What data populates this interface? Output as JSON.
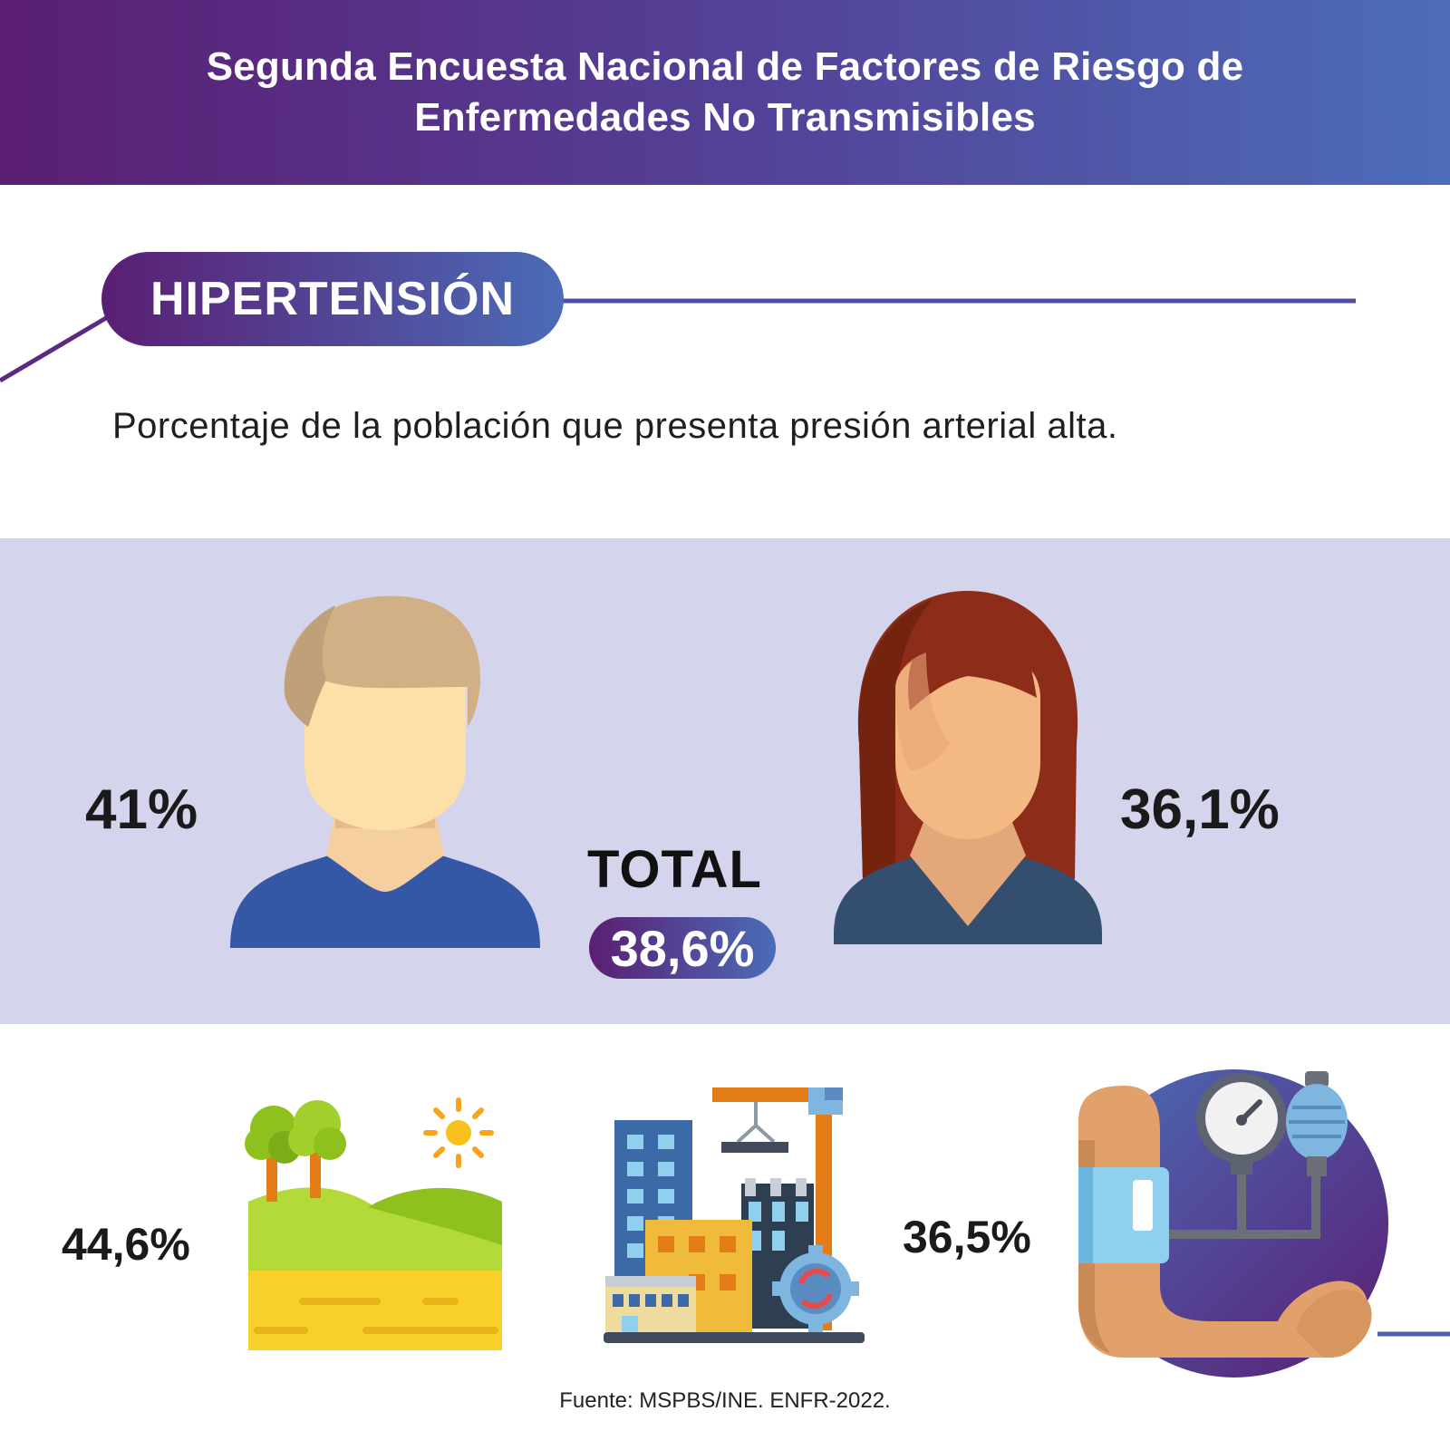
{
  "header": {
    "title": "Segunda Encuesta Nacional de Factores de Riesgo de Enfermedades No Transmisibles"
  },
  "section": {
    "label": "HIPERTENSIÓN",
    "subtitle": "Porcentaje de la población que presenta presión arterial alta."
  },
  "stats": {
    "men": "41%",
    "women": "36,1%",
    "total_label": "TOTAL",
    "total_value": "38,6%",
    "rural": "44,6%",
    "urban": "36,5%"
  },
  "icons": {
    "men": "man-avatar-icon",
    "women": "woman-avatar-icon",
    "rural": "rural-landscape-icon",
    "urban": "urban-city-icon",
    "blood_pressure": "blood-pressure-monitor-icon"
  },
  "colors": {
    "gradient_start": "#5a1e73",
    "gradient_end": "#4c6db8",
    "band": "#d4d5ec"
  },
  "footer": {
    "source": "Fuente: MSPBS/INE. ENFR-2022."
  }
}
